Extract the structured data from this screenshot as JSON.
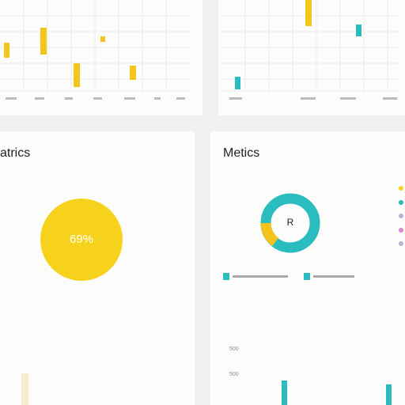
{
  "panels": {
    "left": {
      "title": "atrics",
      "center_label": "69%"
    },
    "right": {
      "title": "Metics",
      "center_label": "R",
      "axis_labels": [
        "500",
        "500"
      ]
    }
  }
}
